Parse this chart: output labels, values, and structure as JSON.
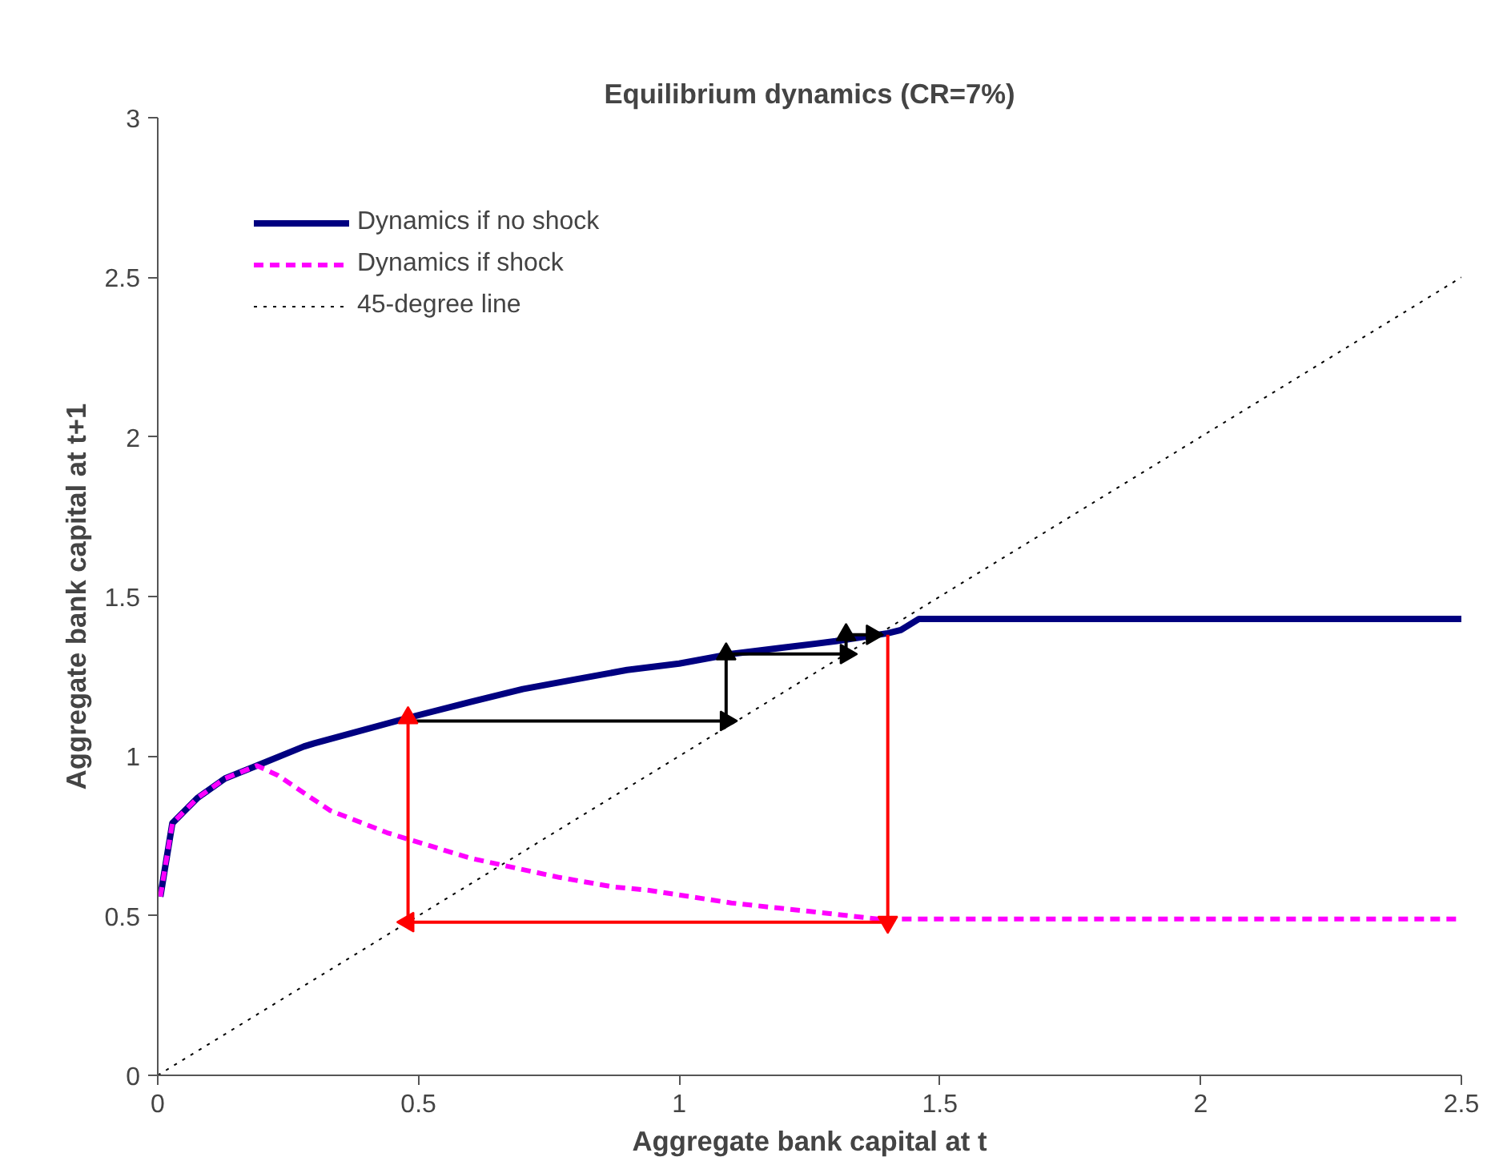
{
  "chart_data": {
    "type": "line",
    "title": "Equilibrium dynamics (CR=7%)",
    "xlabel": "Aggregate bank capital at t",
    "ylabel": "Aggregate bank capital at t+1",
    "xlim": [
      0,
      2.5
    ],
    "ylim": [
      0,
      3
    ],
    "xticks": [
      0,
      0.5,
      1,
      1.5,
      2,
      2.5
    ],
    "yticks": [
      0,
      0.5,
      1,
      1.5,
      2,
      2.5,
      3
    ],
    "grid": false,
    "legend": "top left",
    "marker": "none",
    "series": [
      {
        "name": "Dynamics if no shock",
        "color": "#000080",
        "line_style": "solid",
        "x": [
          0.005,
          0.028,
          0.077,
          0.129,
          0.19,
          0.28,
          0.3,
          0.48,
          0.6,
          0.7,
          0.8,
          0.9,
          1.0,
          1.1,
          1.2,
          1.3,
          1.4,
          1.425,
          1.46,
          2.0,
          2.5
        ],
        "values": [
          0.56,
          0.79,
          0.87,
          0.93,
          0.97,
          1.03,
          1.04,
          1.12,
          1.17,
          1.21,
          1.24,
          1.27,
          1.29,
          1.32,
          1.34,
          1.36,
          1.385,
          1.395,
          1.43,
          1.43,
          1.43
        ]
      },
      {
        "name": "Dynamics if shock",
        "color": "#ff00ff",
        "line_style": "dashed",
        "x": [
          0.005,
          0.028,
          0.077,
          0.129,
          0.19,
          0.23,
          0.33,
          0.44,
          0.6,
          0.77,
          0.875,
          0.94,
          1.1,
          1.27,
          1.38,
          1.43,
          2.0,
          2.5
        ],
        "values": [
          0.56,
          0.79,
          0.87,
          0.93,
          0.97,
          0.94,
          0.83,
          0.76,
          0.68,
          0.62,
          0.59,
          0.58,
          0.54,
          0.51,
          0.49,
          0.49,
          0.49,
          0.49
        ]
      },
      {
        "name": "45-degree line",
        "color": "#000000",
        "line_style": "dotted",
        "x": [
          0,
          2.5
        ],
        "values": [
          0,
          2.5
        ]
      },
      {
        "color": "#000000",
        "line_style": "solid",
        "marker": "triangle",
        "x": [
          0.48,
          1.09,
          1.09,
          1.32,
          1.32,
          1.37
        ],
        "values": [
          1.11,
          1.11,
          1.32,
          1.32,
          1.38,
          1.38
        ]
      },
      {
        "color": "#ff0000",
        "line_style": "solid",
        "marker": "triangle",
        "x": [
          1.4,
          1.4,
          0.48,
          0.48
        ],
        "values": [
          1.38,
          0.48,
          0.48,
          1.12
        ]
      }
    ]
  }
}
